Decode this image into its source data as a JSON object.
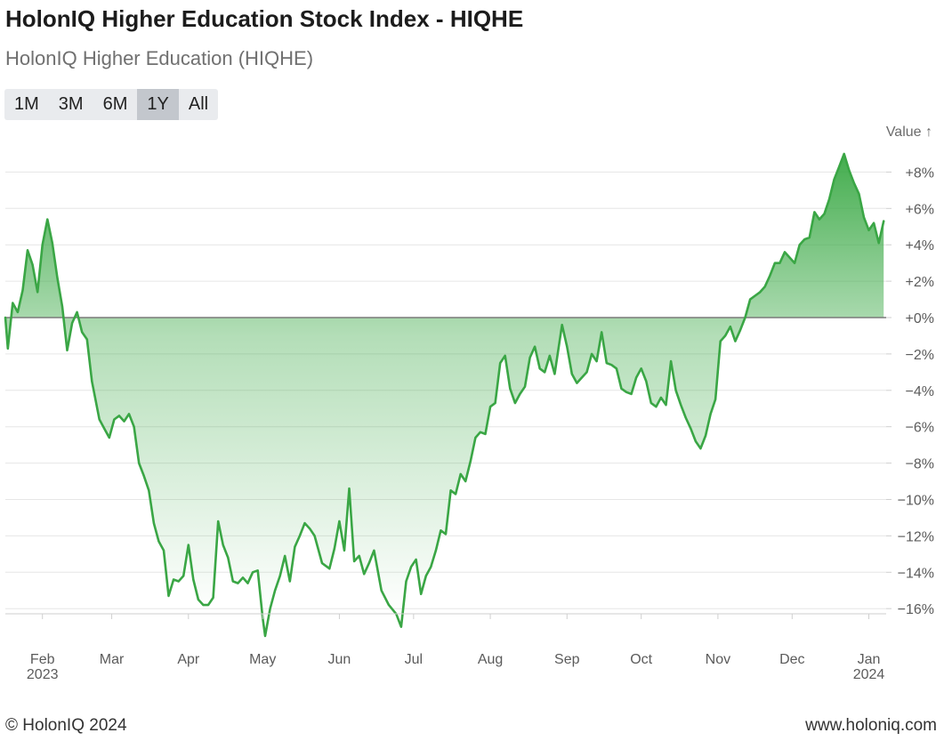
{
  "header": {
    "title": "HolonIQ Higher Education Stock Index - HIQHE",
    "subtitle": "HolonIQ Higher Education (HIQHE)"
  },
  "range_selector": {
    "buttons": [
      "1M",
      "3M",
      "6M",
      "1Y",
      "All"
    ],
    "active": "1Y"
  },
  "footer": {
    "copyright": "© HolonIQ 2024",
    "website": "www.holoniq.com"
  },
  "colors": {
    "line": "#3aa645",
    "fill_top": "#38a843",
    "zero_line": "#7a7a7a",
    "grid": "#e6e6e6"
  },
  "chart_data": {
    "type": "area",
    "title": "HolonIQ Higher Education Stock Index - HIQHE",
    "subtitle": "HolonIQ Higher Education (HIQHE)",
    "ylabel": "Value ↑",
    "y_unit": "%",
    "ylim": [
      -17.5,
      9.5
    ],
    "y_ticks": [
      8,
      6,
      4,
      2,
      0,
      -2,
      -4,
      -6,
      -8,
      -10,
      -12,
      -14,
      -16
    ],
    "y_tick_labels": [
      "+8%",
      "+6%",
      "+4%",
      "+2%",
      "+0%",
      "−2%",
      "−4%",
      "−6%",
      "−8%",
      "−10%",
      "−12%",
      "−14%",
      "−16%"
    ],
    "x_ticks": [
      {
        "date": "2023-02-01",
        "label": "Feb",
        "sub": "2023"
      },
      {
        "date": "2023-03-01",
        "label": "Mar",
        "sub": ""
      },
      {
        "date": "2023-04-01",
        "label": "Apr",
        "sub": ""
      },
      {
        "date": "2023-05-01",
        "label": "May",
        "sub": ""
      },
      {
        "date": "2023-06-01",
        "label": "Jun",
        "sub": ""
      },
      {
        "date": "2023-07-01",
        "label": "Jul",
        "sub": ""
      },
      {
        "date": "2023-08-01",
        "label": "Aug",
        "sub": ""
      },
      {
        "date": "2023-09-01",
        "label": "Sep",
        "sub": ""
      },
      {
        "date": "2023-10-01",
        "label": "Oct",
        "sub": ""
      },
      {
        "date": "2023-11-01",
        "label": "Nov",
        "sub": ""
      },
      {
        "date": "2023-12-01",
        "label": "Dec",
        "sub": ""
      },
      {
        "date": "2024-01-01",
        "label": "Jan",
        "sub": "2024"
      }
    ],
    "grid": true,
    "legend": "none",
    "series": [
      {
        "values": [
          [
            "2023-01-17",
            0.0
          ],
          [
            "2023-01-18",
            -1.7
          ],
          [
            "2023-01-20",
            0.8
          ],
          [
            "2023-01-22",
            0.3
          ],
          [
            "2023-01-24",
            1.5
          ],
          [
            "2023-01-26",
            3.7
          ],
          [
            "2023-01-28",
            2.9
          ],
          [
            "2023-01-30",
            1.4
          ],
          [
            "2023-02-01",
            4.0
          ],
          [
            "2023-02-03",
            5.4
          ],
          [
            "2023-02-05",
            4.1
          ],
          [
            "2023-02-07",
            2.2
          ],
          [
            "2023-02-09",
            0.6
          ],
          [
            "2023-02-11",
            -1.8
          ],
          [
            "2023-02-13",
            -0.3
          ],
          [
            "2023-02-15",
            0.3
          ],
          [
            "2023-02-17",
            -0.8
          ],
          [
            "2023-02-19",
            -1.2
          ],
          [
            "2023-02-21",
            -3.5
          ],
          [
            "2023-02-24",
            -5.6
          ],
          [
            "2023-02-26",
            -6.1
          ],
          [
            "2023-02-28",
            -6.6
          ],
          [
            "2023-03-02",
            -5.6
          ],
          [
            "2023-03-04",
            -5.4
          ],
          [
            "2023-03-06",
            -5.7
          ],
          [
            "2023-03-08",
            -5.3
          ],
          [
            "2023-03-10",
            -6.0
          ],
          [
            "2023-03-12",
            -8.0
          ],
          [
            "2023-03-14",
            -8.7
          ],
          [
            "2023-03-16",
            -9.5
          ],
          [
            "2023-03-18",
            -11.3
          ],
          [
            "2023-03-20",
            -12.3
          ],
          [
            "2023-03-22",
            -12.8
          ],
          [
            "2023-03-24",
            -15.3
          ],
          [
            "2023-03-26",
            -14.4
          ],
          [
            "2023-03-28",
            -14.5
          ],
          [
            "2023-03-30",
            -14.2
          ],
          [
            "2023-04-01",
            -12.5
          ],
          [
            "2023-04-03",
            -14.4
          ],
          [
            "2023-04-05",
            -15.5
          ],
          [
            "2023-04-07",
            -15.8
          ],
          [
            "2023-04-09",
            -15.8
          ],
          [
            "2023-04-11",
            -15.4
          ],
          [
            "2023-04-13",
            -11.2
          ],
          [
            "2023-04-15",
            -12.5
          ],
          [
            "2023-04-17",
            -13.2
          ],
          [
            "2023-04-19",
            -14.5
          ],
          [
            "2023-04-21",
            -14.6
          ],
          [
            "2023-04-23",
            -14.3
          ],
          [
            "2023-04-25",
            -14.6
          ],
          [
            "2023-04-27",
            -14.0
          ],
          [
            "2023-04-29",
            -13.9
          ],
          [
            "2023-05-01",
            -16.5
          ],
          [
            "2023-05-02",
            -17.5
          ],
          [
            "2023-05-04",
            -16.0
          ],
          [
            "2023-05-06",
            -15.0
          ],
          [
            "2023-05-08",
            -14.2
          ],
          [
            "2023-05-10",
            -13.1
          ],
          [
            "2023-05-12",
            -14.5
          ],
          [
            "2023-05-14",
            -12.6
          ],
          [
            "2023-05-16",
            -12.0
          ],
          [
            "2023-05-18",
            -11.3
          ],
          [
            "2023-05-20",
            -11.6
          ],
          [
            "2023-05-22",
            -12.0
          ],
          [
            "2023-05-25",
            -13.5
          ],
          [
            "2023-05-28",
            -13.8
          ],
          [
            "2023-05-30",
            -12.7
          ],
          [
            "2023-06-01",
            -11.2
          ],
          [
            "2023-06-03",
            -12.8
          ],
          [
            "2023-06-05",
            -9.4
          ],
          [
            "2023-06-07",
            -13.4
          ],
          [
            "2023-06-09",
            -13.1
          ],
          [
            "2023-06-11",
            -14.1
          ],
          [
            "2023-06-13",
            -13.5
          ],
          [
            "2023-06-15",
            -12.8
          ],
          [
            "2023-06-18",
            -15.0
          ],
          [
            "2023-06-21",
            -15.8
          ],
          [
            "2023-06-24",
            -16.3
          ],
          [
            "2023-06-26",
            -17.0
          ],
          [
            "2023-06-28",
            -14.5
          ],
          [
            "2023-06-30",
            -13.7
          ],
          [
            "2023-07-02",
            -13.3
          ],
          [
            "2023-07-04",
            -15.2
          ],
          [
            "2023-07-06",
            -14.2
          ],
          [
            "2023-07-08",
            -13.7
          ],
          [
            "2023-07-10",
            -12.8
          ],
          [
            "2023-07-12",
            -11.7
          ],
          [
            "2023-07-14",
            -11.9
          ],
          [
            "2023-07-16",
            -9.5
          ],
          [
            "2023-07-18",
            -9.7
          ],
          [
            "2023-07-20",
            -8.6
          ],
          [
            "2023-07-22",
            -9.0
          ],
          [
            "2023-07-24",
            -7.9
          ],
          [
            "2023-07-26",
            -6.6
          ],
          [
            "2023-07-28",
            -6.3
          ],
          [
            "2023-07-30",
            -6.4
          ],
          [
            "2023-08-01",
            -4.9
          ],
          [
            "2023-08-03",
            -4.7
          ],
          [
            "2023-08-05",
            -2.5
          ],
          [
            "2023-08-07",
            -2.1
          ],
          [
            "2023-08-09",
            -3.9
          ],
          [
            "2023-08-11",
            -4.7
          ],
          [
            "2023-08-13",
            -4.2
          ],
          [
            "2023-08-15",
            -3.8
          ],
          [
            "2023-08-17",
            -2.2
          ],
          [
            "2023-08-19",
            -1.6
          ],
          [
            "2023-08-21",
            -2.8
          ],
          [
            "2023-08-23",
            -3.0
          ],
          [
            "2023-08-25",
            -2.1
          ],
          [
            "2023-08-27",
            -3.1
          ],
          [
            "2023-08-30",
            -0.4
          ],
          [
            "2023-09-01",
            -1.6
          ],
          [
            "2023-09-03",
            -3.1
          ],
          [
            "2023-09-05",
            -3.6
          ],
          [
            "2023-09-07",
            -3.3
          ],
          [
            "2023-09-09",
            -3.0
          ],
          [
            "2023-09-11",
            -2.0
          ],
          [
            "2023-09-13",
            -2.4
          ],
          [
            "2023-09-15",
            -0.8
          ],
          [
            "2023-09-17",
            -2.5
          ],
          [
            "2023-09-19",
            -2.6
          ],
          [
            "2023-09-21",
            -2.8
          ],
          [
            "2023-09-23",
            -3.9
          ],
          [
            "2023-09-25",
            -4.1
          ],
          [
            "2023-09-27",
            -4.2
          ],
          [
            "2023-09-29",
            -3.3
          ],
          [
            "2023-10-01",
            -2.8
          ],
          [
            "2023-10-03",
            -3.5
          ],
          [
            "2023-10-05",
            -4.7
          ],
          [
            "2023-10-07",
            -4.9
          ],
          [
            "2023-10-09",
            -4.4
          ],
          [
            "2023-10-11",
            -4.8
          ],
          [
            "2023-10-13",
            -2.4
          ],
          [
            "2023-10-15",
            -4.0
          ],
          [
            "2023-10-17",
            -4.8
          ],
          [
            "2023-10-19",
            -5.5
          ],
          [
            "2023-10-21",
            -6.1
          ],
          [
            "2023-10-23",
            -6.8
          ],
          [
            "2023-10-25",
            -7.2
          ],
          [
            "2023-10-27",
            -6.5
          ],
          [
            "2023-10-29",
            -5.3
          ],
          [
            "2023-10-31",
            -4.5
          ],
          [
            "2023-11-02",
            -1.3
          ],
          [
            "2023-11-04",
            -1.0
          ],
          [
            "2023-11-06",
            -0.5
          ],
          [
            "2023-11-08",
            -1.3
          ],
          [
            "2023-11-10",
            -0.7
          ],
          [
            "2023-11-12",
            0.0
          ],
          [
            "2023-11-14",
            1.0
          ],
          [
            "2023-11-16",
            1.2
          ],
          [
            "2023-11-18",
            1.4
          ],
          [
            "2023-11-20",
            1.7
          ],
          [
            "2023-11-22",
            2.3
          ],
          [
            "2023-11-24",
            3.0
          ],
          [
            "2023-11-26",
            3.0
          ],
          [
            "2023-11-28",
            3.6
          ],
          [
            "2023-11-30",
            3.3
          ],
          [
            "2023-12-02",
            3.0
          ],
          [
            "2023-12-04",
            4.0
          ],
          [
            "2023-12-06",
            4.3
          ],
          [
            "2023-12-08",
            4.4
          ],
          [
            "2023-12-10",
            5.8
          ],
          [
            "2023-12-12",
            5.4
          ],
          [
            "2023-12-14",
            5.7
          ],
          [
            "2023-12-16",
            6.5
          ],
          [
            "2023-12-18",
            7.6
          ],
          [
            "2023-12-20",
            8.3
          ],
          [
            "2023-12-22",
            9.0
          ],
          [
            "2023-12-24",
            8.1
          ],
          [
            "2023-12-26",
            7.4
          ],
          [
            "2023-12-28",
            6.8
          ],
          [
            "2023-12-30",
            5.5
          ],
          [
            "2024-01-01",
            4.8
          ],
          [
            "2024-01-03",
            5.2
          ],
          [
            "2024-01-05",
            4.1
          ],
          [
            "2024-01-07",
            5.3
          ]
        ]
      }
    ]
  }
}
